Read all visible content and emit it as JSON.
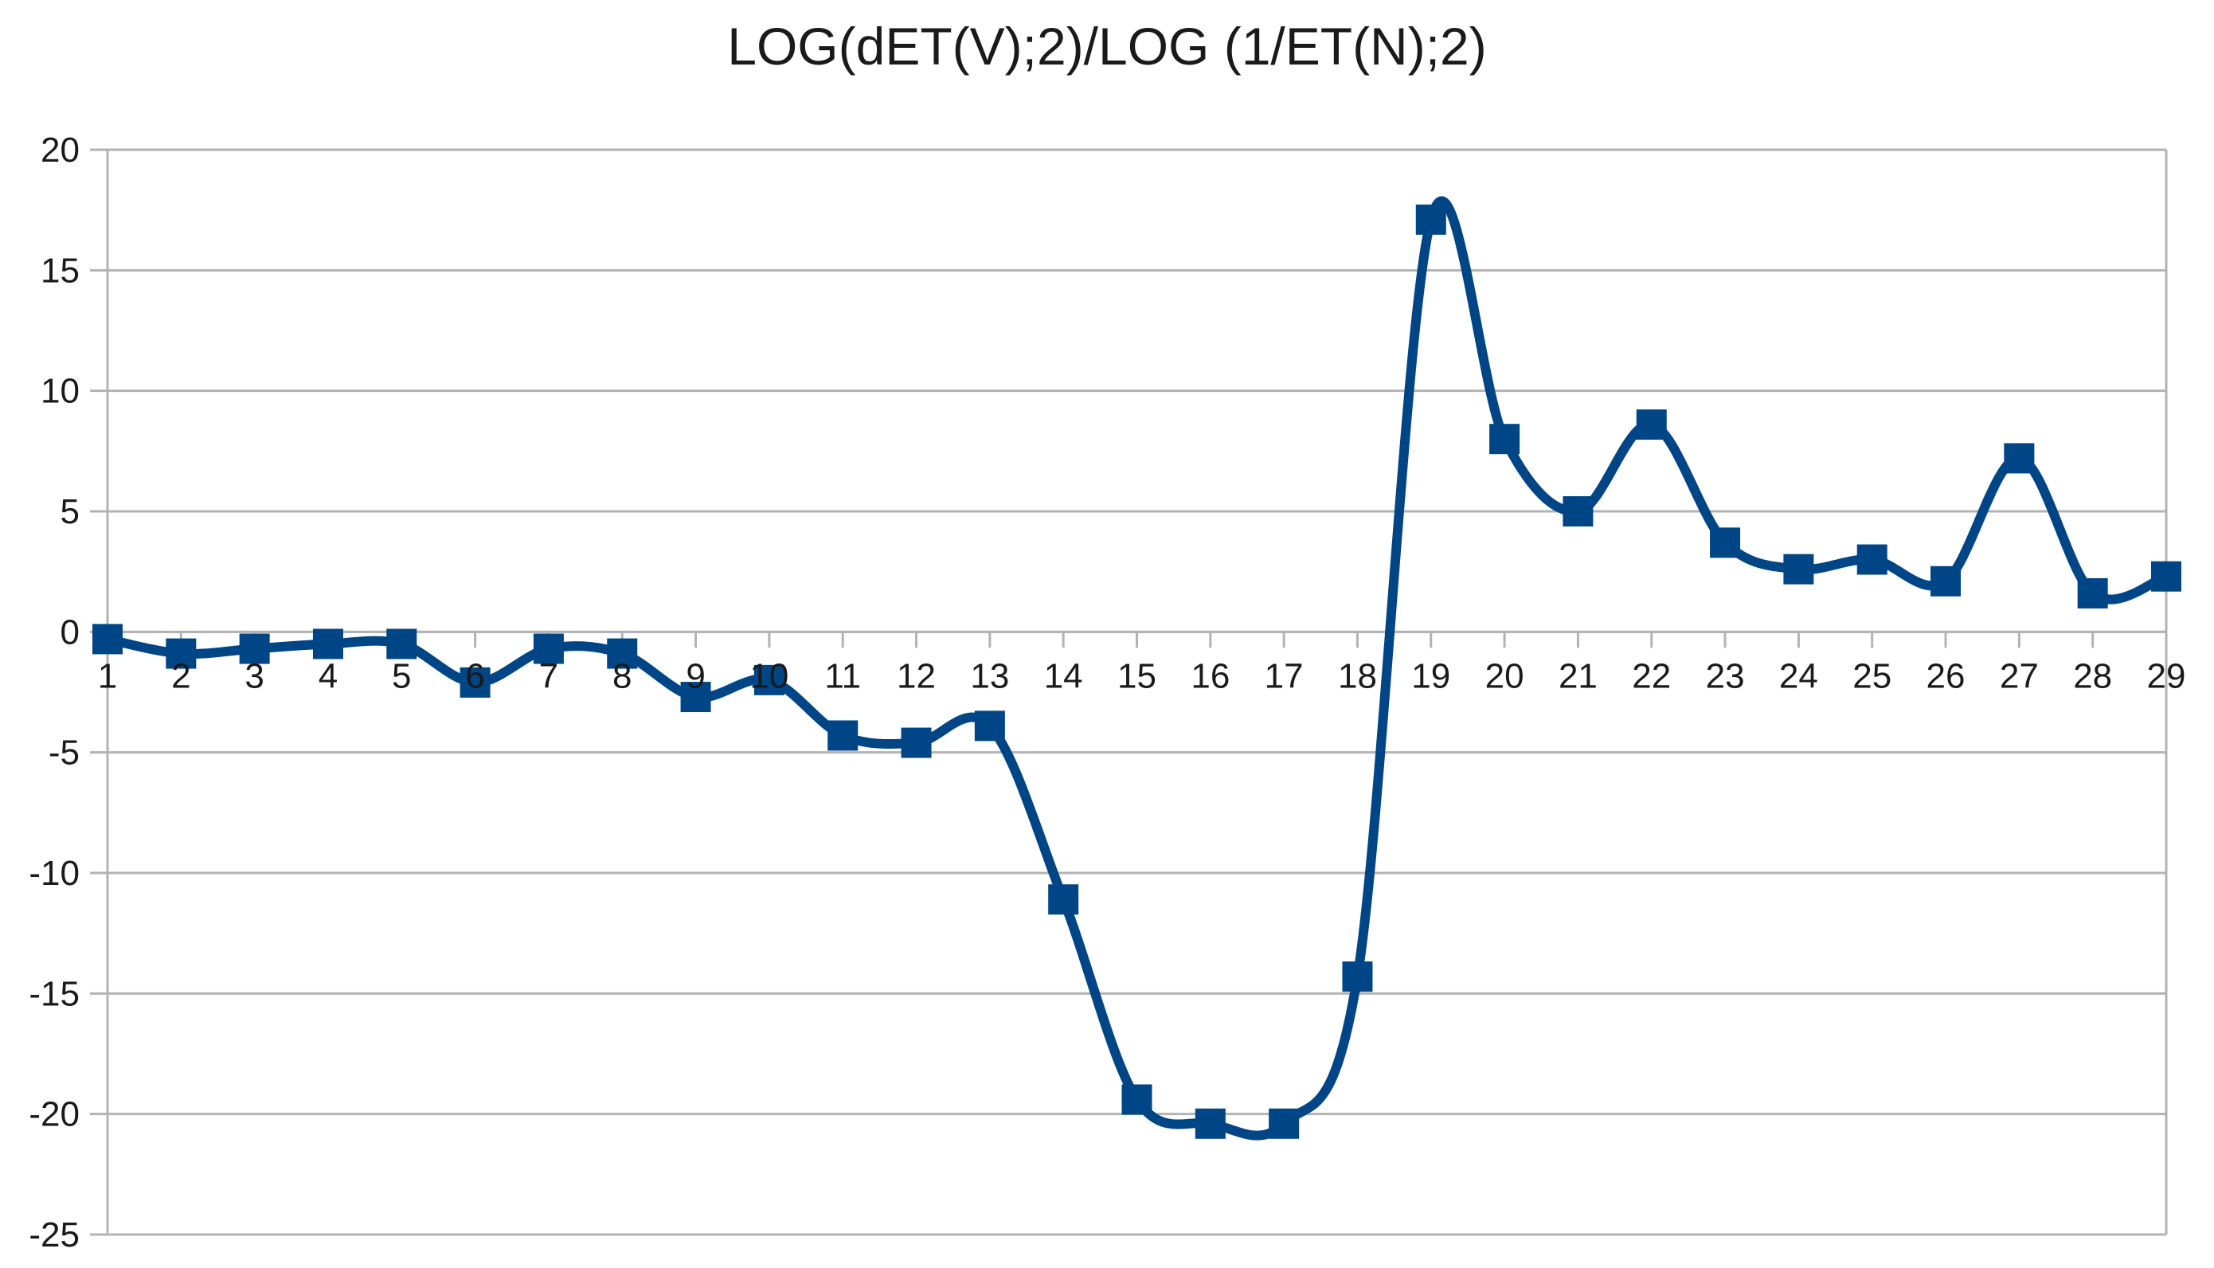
{
  "chart_data": {
    "type": "line",
    "title": "LOG(dET(V);2)/LOG (1/ET(N);2)",
    "xlabel": "",
    "ylabel": "",
    "categories": [
      "1",
      "2",
      "3",
      "4",
      "5",
      "6",
      "7",
      "8",
      "9",
      "10",
      "11",
      "12",
      "13",
      "14",
      "15",
      "16",
      "17",
      "18",
      "19",
      "20",
      "21",
      "22",
      "23",
      "24",
      "25",
      "26",
      "27",
      "28",
      "29"
    ],
    "series": [
      {
        "name": "",
        "values": [
          -0.3,
          -0.9,
          -0.7,
          -0.5,
          -0.5,
          -2.1,
          -0.7,
          -0.9,
          -2.7,
          -2.0,
          -4.3,
          -4.6,
          -3.9,
          -11.1,
          -19.4,
          -20.4,
          -20.4,
          -14.3,
          17.1,
          8.0,
          5.0,
          8.6,
          3.7,
          2.6,
          3.0,
          2.1,
          7.2,
          1.6,
          2.3
        ],
        "color": "#004586",
        "marker": "square",
        "smooth": true
      }
    ],
    "ylim": [
      -25,
      20
    ],
    "yticks": [
      "20",
      "15",
      "10",
      "5",
      "0",
      "-5",
      "-10",
      "-15",
      "-20",
      "-25"
    ],
    "grid": "horizontal",
    "legend": "none"
  }
}
